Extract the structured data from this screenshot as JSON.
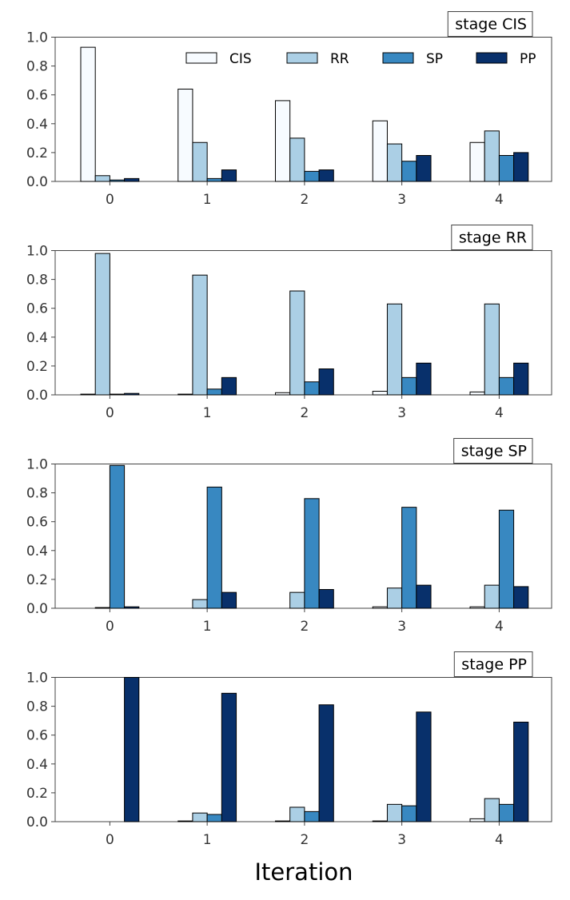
{
  "x_title": "Iteration",
  "colors": {
    "CIS": "#f7fbff",
    "RR": "#abcfe5",
    "SP": "#3888c1",
    "PP": "#08306b"
  },
  "chart_data": [
    {
      "type": "bar",
      "title": "stage CIS",
      "categories": [
        "0",
        "1",
        "2",
        "3",
        "4"
      ],
      "ylim": [
        0,
        1.0
      ],
      "yticks": [
        "0.0",
        "0.2",
        "0.4",
        "0.6",
        "0.8",
        "1.0"
      ],
      "legend": {
        "placement": "top-right",
        "entries": [
          "CIS",
          "RR",
          "SP",
          "PP"
        ]
      },
      "series": [
        {
          "name": "CIS",
          "values": [
            0.93,
            0.64,
            0.56,
            0.42,
            0.27
          ]
        },
        {
          "name": "RR",
          "values": [
            0.04,
            0.27,
            0.3,
            0.26,
            0.35
          ]
        },
        {
          "name": "SP",
          "values": [
            0.01,
            0.02,
            0.07,
            0.14,
            0.18
          ]
        },
        {
          "name": "PP",
          "values": [
            0.02,
            0.08,
            0.08,
            0.18,
            0.2
          ]
        }
      ]
    },
    {
      "type": "bar",
      "title": "stage RR",
      "categories": [
        "0",
        "1",
        "2",
        "3",
        "4"
      ],
      "ylim": [
        0,
        1.0
      ],
      "yticks": [
        "0.0",
        "0.2",
        "0.4",
        "0.6",
        "0.8",
        "1.0"
      ],
      "series": [
        {
          "name": "CIS",
          "values": [
            0.005,
            0.005,
            0.015,
            0.025,
            0.02
          ]
        },
        {
          "name": "RR",
          "values": [
            0.98,
            0.83,
            0.72,
            0.63,
            0.63
          ]
        },
        {
          "name": "SP",
          "values": [
            0.005,
            0.04,
            0.09,
            0.12,
            0.12
          ]
        },
        {
          "name": "PP",
          "values": [
            0.01,
            0.12,
            0.18,
            0.22,
            0.22
          ]
        }
      ]
    },
    {
      "type": "bar",
      "title": "stage SP",
      "categories": [
        "0",
        "1",
        "2",
        "3",
        "4"
      ],
      "ylim": [
        0,
        1.0
      ],
      "yticks": [
        "0.0",
        "0.2",
        "0.4",
        "0.6",
        "0.8",
        "1.0"
      ],
      "series": [
        {
          "name": "CIS",
          "values": [
            0.0,
            0.0,
            0.0,
            0.01,
            0.01
          ]
        },
        {
          "name": "RR",
          "values": [
            0.005,
            0.06,
            0.11,
            0.14,
            0.16
          ]
        },
        {
          "name": "SP",
          "values": [
            0.99,
            0.84,
            0.76,
            0.7,
            0.68
          ]
        },
        {
          "name": "PP",
          "values": [
            0.01,
            0.11,
            0.13,
            0.16,
            0.15
          ]
        }
      ]
    },
    {
      "type": "bar",
      "title": "stage PP",
      "categories": [
        "0",
        "1",
        "2",
        "3",
        "4"
      ],
      "ylim": [
        0,
        1.0
      ],
      "yticks": [
        "0.0",
        "0.2",
        "0.4",
        "0.6",
        "0.8",
        "1.0"
      ],
      "series": [
        {
          "name": "CIS",
          "values": [
            0.0,
            0.005,
            0.005,
            0.005,
            0.02
          ]
        },
        {
          "name": "RR",
          "values": [
            0.0,
            0.06,
            0.1,
            0.12,
            0.16
          ]
        },
        {
          "name": "SP",
          "values": [
            0.0,
            0.05,
            0.07,
            0.11,
            0.12
          ]
        },
        {
          "name": "PP",
          "values": [
            1.0,
            0.89,
            0.81,
            0.76,
            0.69
          ]
        }
      ]
    }
  ]
}
